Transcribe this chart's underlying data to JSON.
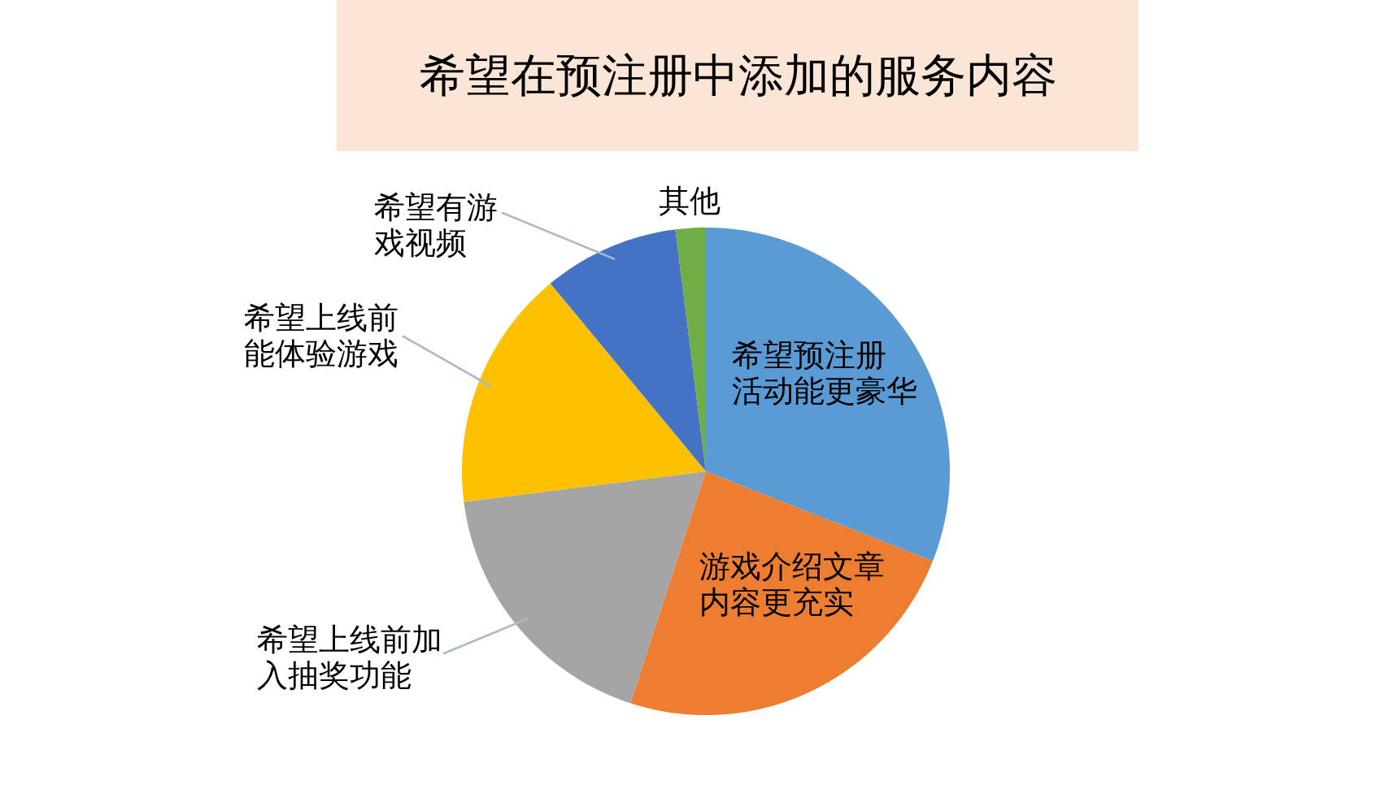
{
  "chart_data": {
    "type": "pie",
    "title": "希望在预注册中添加的服务内容",
    "categories": [
      "希望预注册活动能更豪华",
      "游戏介绍文章内容更充实",
      "希望上线前加入抽奖功能",
      "希望上线前能体验游戏",
      "希望有游戏视频",
      "其他"
    ],
    "values": [
      31,
      24,
      18,
      16,
      9,
      2
    ],
    "colors": [
      "#5b9bd5",
      "#ed7d31",
      "#a5a5a5",
      "#ffc000",
      "#4472c4",
      "#70ad47"
    ]
  }
}
